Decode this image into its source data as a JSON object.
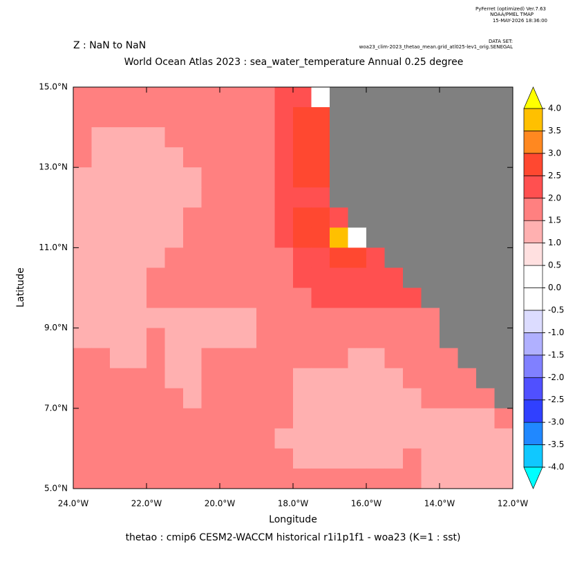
{
  "chart_data": {
    "type": "heatmap",
    "header": [
      "PyFerret (optimized) Ver.7.63",
      "NOAA/PMEL TMAP",
      "15-MAY-2026 18:36:00"
    ],
    "dataset_label": "DATA SET:",
    "dataset": "woa23_clim-2023_thetao_mean.grid_atl025-lev1_orig.SENEGAL",
    "subtitle": "Z : NaN to NaN",
    "title": "World Ocean Atlas 2023 : sea_water_temperature Annual  0.25 degree",
    "xlabel": "Longitude",
    "ylabel": "Latitude",
    "footer": "thetao : cmip6 CESM2-WACCM historical r1i1p1f1 - woa23  (K=1 : sst)",
    "xlim": [
      -24,
      -12
    ],
    "ylim": [
      5,
      15
    ],
    "xticks": [
      {
        "value": -24,
        "label": "24.0°W"
      },
      {
        "value": -22,
        "label": "22.0°W"
      },
      {
        "value": -20,
        "label": "20.0°W"
      },
      {
        "value": -18,
        "label": "18.0°W"
      },
      {
        "value": -16,
        "label": "16.0°W"
      },
      {
        "value": -14,
        "label": "14.0°W"
      },
      {
        "value": -12,
        "label": "12.0°W"
      }
    ],
    "yticks": [
      {
        "value": 5,
        "label": "5.0°N"
      },
      {
        "value": 7,
        "label": "7.0°N"
      },
      {
        "value": 9,
        "label": "9.0°N"
      },
      {
        "value": 11,
        "label": "11.0°N"
      },
      {
        "value": 13,
        "label": "13.0°N"
      },
      {
        "value": 15,
        "label": "15.0°N"
      }
    ],
    "x": [
      -23.75,
      -23.25,
      -22.75,
      -22.25,
      -21.75,
      -21.25,
      -20.75,
      -20.25,
      -19.75,
      -19.25,
      -18.75,
      -18.25,
      -17.75,
      -17.25,
      -16.75,
      -16.25,
      -15.75,
      -15.25,
      -14.75,
      -14.25,
      -13.75,
      -13.25,
      -12.75,
      -12.25
    ],
    "y": [
      14.75,
      14.25,
      13.75,
      13.25,
      12.75,
      12.25,
      11.75,
      11.25,
      10.75,
      10.25,
      9.75,
      9.25,
      8.75,
      8.25,
      7.75,
      7.25,
      6.75,
      6.25,
      5.75,
      5.25
    ],
    "z": [
      [
        1.7,
        1.7,
        1.7,
        1.7,
        1.7,
        1.7,
        1.7,
        1.7,
        1.7,
        1.7,
        1.7,
        2.2,
        2.2,
        0.2,
        null,
        null,
        null,
        null,
        null,
        null,
        null,
        null,
        null,
        null
      ],
      [
        1.7,
        1.7,
        1.7,
        1.7,
        1.7,
        1.7,
        1.7,
        1.7,
        1.7,
        1.7,
        1.7,
        2.2,
        2.7,
        2.7,
        null,
        null,
        null,
        null,
        null,
        null,
        null,
        null,
        null,
        null
      ],
      [
        1.7,
        1.2,
        1.2,
        1.2,
        1.2,
        1.7,
        1.7,
        1.7,
        1.7,
        1.7,
        1.7,
        2.2,
        2.7,
        2.7,
        null,
        null,
        null,
        null,
        null,
        null,
        null,
        null,
        null,
        null
      ],
      [
        1.7,
        1.2,
        1.2,
        1.2,
        1.2,
        1.2,
        1.7,
        1.7,
        1.7,
        1.7,
        1.7,
        2.2,
        2.7,
        2.7,
        null,
        null,
        null,
        null,
        null,
        null,
        null,
        null,
        null,
        null
      ],
      [
        1.2,
        1.2,
        1.2,
        1.2,
        1.2,
        1.2,
        1.2,
        1.7,
        1.7,
        1.7,
        1.7,
        2.2,
        2.7,
        2.7,
        null,
        null,
        null,
        null,
        null,
        null,
        null,
        null,
        null,
        null
      ],
      [
        1.2,
        1.2,
        1.2,
        1.2,
        1.2,
        1.2,
        1.2,
        1.7,
        1.7,
        1.7,
        1.7,
        2.2,
        2.2,
        2.2,
        null,
        null,
        null,
        null,
        null,
        null,
        null,
        null,
        null,
        null
      ],
      [
        1.2,
        1.2,
        1.2,
        1.2,
        1.2,
        1.2,
        1.7,
        1.7,
        1.7,
        1.7,
        1.7,
        2.2,
        2.7,
        2.7,
        2.2,
        null,
        null,
        null,
        null,
        null,
        null,
        null,
        null,
        null
      ],
      [
        1.2,
        1.2,
        1.2,
        1.2,
        1.2,
        1.2,
        1.7,
        1.7,
        1.7,
        1.7,
        1.7,
        2.2,
        2.7,
        2.7,
        3.7,
        0.2,
        null,
        null,
        null,
        null,
        null,
        null,
        null,
        null
      ],
      [
        1.2,
        1.2,
        1.2,
        1.2,
        1.2,
        1.7,
        1.7,
        1.7,
        1.7,
        1.7,
        1.7,
        1.7,
        2.2,
        2.2,
        2.7,
        2.7,
        2.2,
        null,
        null,
        null,
        null,
        null,
        null,
        null
      ],
      [
        1.2,
        1.2,
        1.2,
        1.2,
        1.7,
        1.7,
        1.7,
        1.7,
        1.7,
        1.7,
        1.7,
        1.7,
        2.2,
        2.2,
        2.2,
        2.2,
        2.2,
        2.2,
        null,
        null,
        null,
        null,
        null,
        null
      ],
      [
        1.2,
        1.2,
        1.2,
        1.2,
        1.7,
        1.7,
        1.7,
        1.7,
        1.7,
        1.7,
        1.7,
        1.7,
        1.7,
        2.2,
        2.2,
        2.2,
        2.2,
        2.2,
        2.2,
        null,
        null,
        null,
        null,
        null
      ],
      [
        1.2,
        1.2,
        1.2,
        1.2,
        1.2,
        1.2,
        1.2,
        1.2,
        1.2,
        1.2,
        1.7,
        1.7,
        1.7,
        1.7,
        1.7,
        1.7,
        1.7,
        1.7,
        1.7,
        1.7,
        null,
        null,
        null,
        null
      ],
      [
        1.2,
        1.2,
        1.2,
        1.2,
        1.7,
        1.2,
        1.2,
        1.2,
        1.2,
        1.2,
        1.7,
        1.7,
        1.7,
        1.7,
        1.7,
        1.7,
        1.7,
        1.7,
        1.7,
        1.7,
        null,
        null,
        null,
        null
      ],
      [
        1.7,
        1.7,
        1.2,
        1.2,
        1.7,
        1.2,
        1.2,
        1.7,
        1.7,
        1.7,
        1.7,
        1.7,
        1.7,
        1.7,
        1.7,
        1.2,
        1.2,
        1.7,
        1.7,
        1.7,
        1.7,
        null,
        null,
        null
      ],
      [
        1.7,
        1.7,
        1.7,
        1.7,
        1.7,
        1.2,
        1.2,
        1.7,
        1.7,
        1.7,
        1.7,
        1.7,
        1.2,
        1.2,
        1.2,
        1.2,
        1.2,
        1.2,
        1.7,
        1.7,
        1.7,
        1.7,
        null,
        null
      ],
      [
        1.7,
        1.7,
        1.7,
        1.7,
        1.7,
        1.7,
        1.2,
        1.7,
        1.7,
        1.7,
        1.7,
        1.7,
        1.2,
        1.2,
        1.2,
        1.2,
        1.2,
        1.2,
        1.2,
        1.7,
        1.7,
        1.7,
        1.7,
        null
      ],
      [
        1.7,
        1.7,
        1.7,
        1.7,
        1.7,
        1.7,
        1.7,
        1.7,
        1.7,
        1.7,
        1.7,
        1.7,
        1.2,
        1.2,
        1.2,
        1.2,
        1.2,
        1.2,
        1.2,
        1.2,
        1.2,
        1.2,
        1.2,
        1.7
      ],
      [
        1.7,
        1.7,
        1.7,
        1.7,
        1.7,
        1.7,
        1.7,
        1.7,
        1.7,
        1.7,
        1.7,
        1.2,
        1.2,
        1.2,
        1.2,
        1.2,
        1.2,
        1.2,
        1.2,
        1.2,
        1.2,
        1.2,
        1.2,
        1.2
      ],
      [
        1.7,
        1.7,
        1.7,
        1.7,
        1.7,
        1.7,
        1.7,
        1.7,
        1.7,
        1.7,
        1.7,
        1.7,
        1.2,
        1.2,
        1.2,
        1.2,
        1.2,
        1.2,
        1.7,
        1.2,
        1.2,
        1.2,
        1.2,
        1.2
      ],
      [
        1.7,
        1.7,
        1.7,
        1.7,
        1.7,
        1.7,
        1.7,
        1.7,
        1.7,
        1.7,
        1.7,
        1.7,
        1.7,
        1.7,
        1.7,
        1.7,
        1.7,
        1.7,
        1.7,
        1.2,
        1.2,
        1.2,
        1.2,
        1.2
      ]
    ],
    "missing_color": "#808080",
    "levels": [
      {
        "value": -4,
        "label": "-4.0"
      },
      {
        "value": -3.5,
        "label": "-3.5"
      },
      {
        "value": -3,
        "label": "-3.0"
      },
      {
        "value": -2.5,
        "label": "-2.5"
      },
      {
        "value": -2,
        "label": "-2.0"
      },
      {
        "value": -1.5,
        "label": "-1.5"
      },
      {
        "value": -1,
        "label": "-1.0"
      },
      {
        "value": -0.5,
        "label": "-0.5"
      },
      {
        "value": 0,
        "label": "0.0"
      },
      {
        "value": 0.5,
        "label": "0.5"
      },
      {
        "value": 1,
        "label": "1.0"
      },
      {
        "value": 1.5,
        "label": "1.5"
      },
      {
        "value": 2,
        "label": "2.0"
      },
      {
        "value": 2.5,
        "label": "2.5"
      },
      {
        "value": 3,
        "label": "3.0"
      },
      {
        "value": 3.5,
        "label": "3.5"
      },
      {
        "value": 4,
        "label": "4.0"
      }
    ],
    "colors": [
      "#10c8ff",
      "#2088ff",
      "#3040ff",
      "#5050ff",
      "#8080ff",
      "#b0b0ff",
      "#dcdcff",
      "#ffffff",
      "#ffffff",
      "#ffe0e0",
      "#ffb0b0",
      "#ff8080",
      "#ff5050",
      "#ff4830",
      "#ff8820",
      "#ffc000"
    ],
    "under_color": "#00ffff",
    "over_color": "#ffff00"
  }
}
